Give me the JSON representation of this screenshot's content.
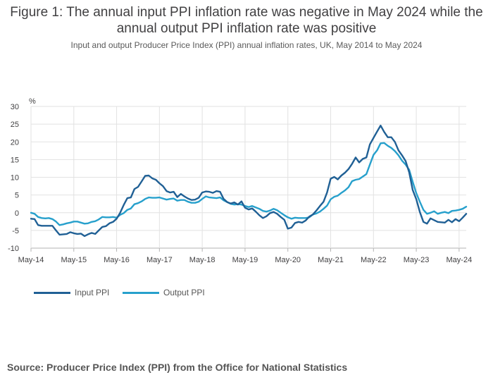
{
  "title": "Figure 1: The annual input PPI inflation rate was negative in May 2024 while the annual output PPI inflation rate was positive",
  "subtitle": "Input and output Producer Price Index (PPI) annual inflation rates, UK, May 2014 to May 2024",
  "source": "Source: Producer Price Index (PPI) from the Office for National Statistics",
  "colors": {
    "input": "#206095",
    "output": "#27a0cc",
    "grid": "#e2e2e2",
    "axis": "#b3b3b3"
  },
  "chart_data": {
    "type": "line",
    "title": "Figure 1: The annual input PPI inflation rate was negative in May 2024 while the annual output PPI inflation rate was positive",
    "xlabel": "",
    "ylabel": "%",
    "ylim": [
      -10,
      30
    ],
    "yticks": [
      30,
      25,
      20,
      15,
      10,
      5,
      0,
      -5,
      -10
    ],
    "xticks": [
      "May-14",
      "May-15",
      "May-16",
      "May-17",
      "May-18",
      "May-19",
      "May-20",
      "May-21",
      "May-22",
      "May-23",
      "May-24"
    ],
    "grid": true,
    "legend_position": "bottom-left",
    "x_start": "May-14",
    "series": [
      {
        "name": "Input PPI",
        "key": "input",
        "values": [
          -1.7,
          -1.8,
          -3.5,
          -3.7,
          -3.7,
          -3.7,
          -3.7,
          -5.0,
          -6.2,
          -6.1,
          -6.0,
          -5.5,
          -5.8,
          -6.0,
          -5.9,
          -6.6,
          -6.1,
          -5.7,
          -6.0,
          -5.0,
          -4.0,
          -3.8,
          -3.0,
          -2.6,
          -1.7,
          0.0,
          2.2,
          4.1,
          4.3,
          6.7,
          7.3,
          8.8,
          10.4,
          10.5,
          9.7,
          9.3,
          8.3,
          7.5,
          6.1,
          5.7,
          5.9,
          4.4,
          5.3,
          4.6,
          4.0,
          3.6,
          3.7,
          4.2,
          5.7,
          6.0,
          5.9,
          5.6,
          6.1,
          5.9,
          3.9,
          3.0,
          2.6,
          2.9,
          2.3,
          3.2,
          1.4,
          0.9,
          1.2,
          0.3,
          -0.7,
          -1.5,
          -1.0,
          -0.1,
          0.2,
          -0.3,
          -1.2,
          -2.0,
          -4.5,
          -4.2,
          -2.9,
          -2.6,
          -2.8,
          -2.2,
          -1.1,
          -0.5,
          0.6,
          1.9,
          3.1,
          5.7,
          9.6,
          10.1,
          9.4,
          10.5,
          11.3,
          12.3,
          13.8,
          15.6,
          14.2,
          15.2,
          15.6,
          19.3,
          21.1,
          22.9,
          24.6,
          22.8,
          21.3,
          21.3,
          20.0,
          17.6,
          16.2,
          14.6,
          11.4,
          6.4,
          3.8,
          0.2,
          -2.6,
          -3.1,
          -1.6,
          -2.1,
          -2.6,
          -2.7,
          -2.8,
          -2.0,
          -2.7,
          -1.8,
          -2.4,
          -1.4,
          -0.3
        ]
      },
      {
        "name": "Output PPI",
        "key": "output",
        "values": [
          0.0,
          -0.3,
          -1.2,
          -1.5,
          -1.6,
          -1.5,
          -1.8,
          -2.5,
          -3.5,
          -3.3,
          -3.0,
          -2.8,
          -2.5,
          -2.5,
          -2.8,
          -3.1,
          -3.0,
          -2.6,
          -2.4,
          -1.9,
          -1.2,
          -1.3,
          -1.3,
          -1.2,
          -1.4,
          -0.6,
          -0.1,
          0.8,
          1.2,
          2.4,
          2.7,
          3.2,
          3.9,
          4.3,
          4.2,
          4.2,
          4.3,
          4.0,
          3.7,
          3.9,
          4.0,
          3.4,
          3.6,
          3.6,
          3.1,
          2.8,
          2.8,
          3.1,
          3.9,
          4.6,
          4.3,
          4.2,
          4.1,
          4.3,
          3.5,
          3.0,
          2.5,
          2.3,
          2.4,
          2.3,
          1.9,
          1.6,
          1.9,
          1.5,
          1.1,
          0.5,
          0.3,
          0.6,
          1.1,
          0.7,
          0.0,
          -0.7,
          -1.3,
          -1.7,
          -1.4,
          -1.5,
          -1.5,
          -1.5,
          -1.3,
          -0.5,
          -0.2,
          0.3,
          1.1,
          2.0,
          3.8,
          4.5,
          4.8,
          5.6,
          6.3,
          7.2,
          8.9,
          9.3,
          9.5,
          10.2,
          10.9,
          13.6,
          16.3,
          17.6,
          19.6,
          19.7,
          18.9,
          18.3,
          17.4,
          16.2,
          14.7,
          13.6,
          12.1,
          8.7,
          5.5,
          3.1,
          0.8,
          -0.3,
          0.0,
          0.4,
          -0.3,
          0.0,
          0.2,
          -0.1,
          0.5,
          0.6,
          0.8,
          1.1,
          1.7
        ]
      }
    ]
  }
}
